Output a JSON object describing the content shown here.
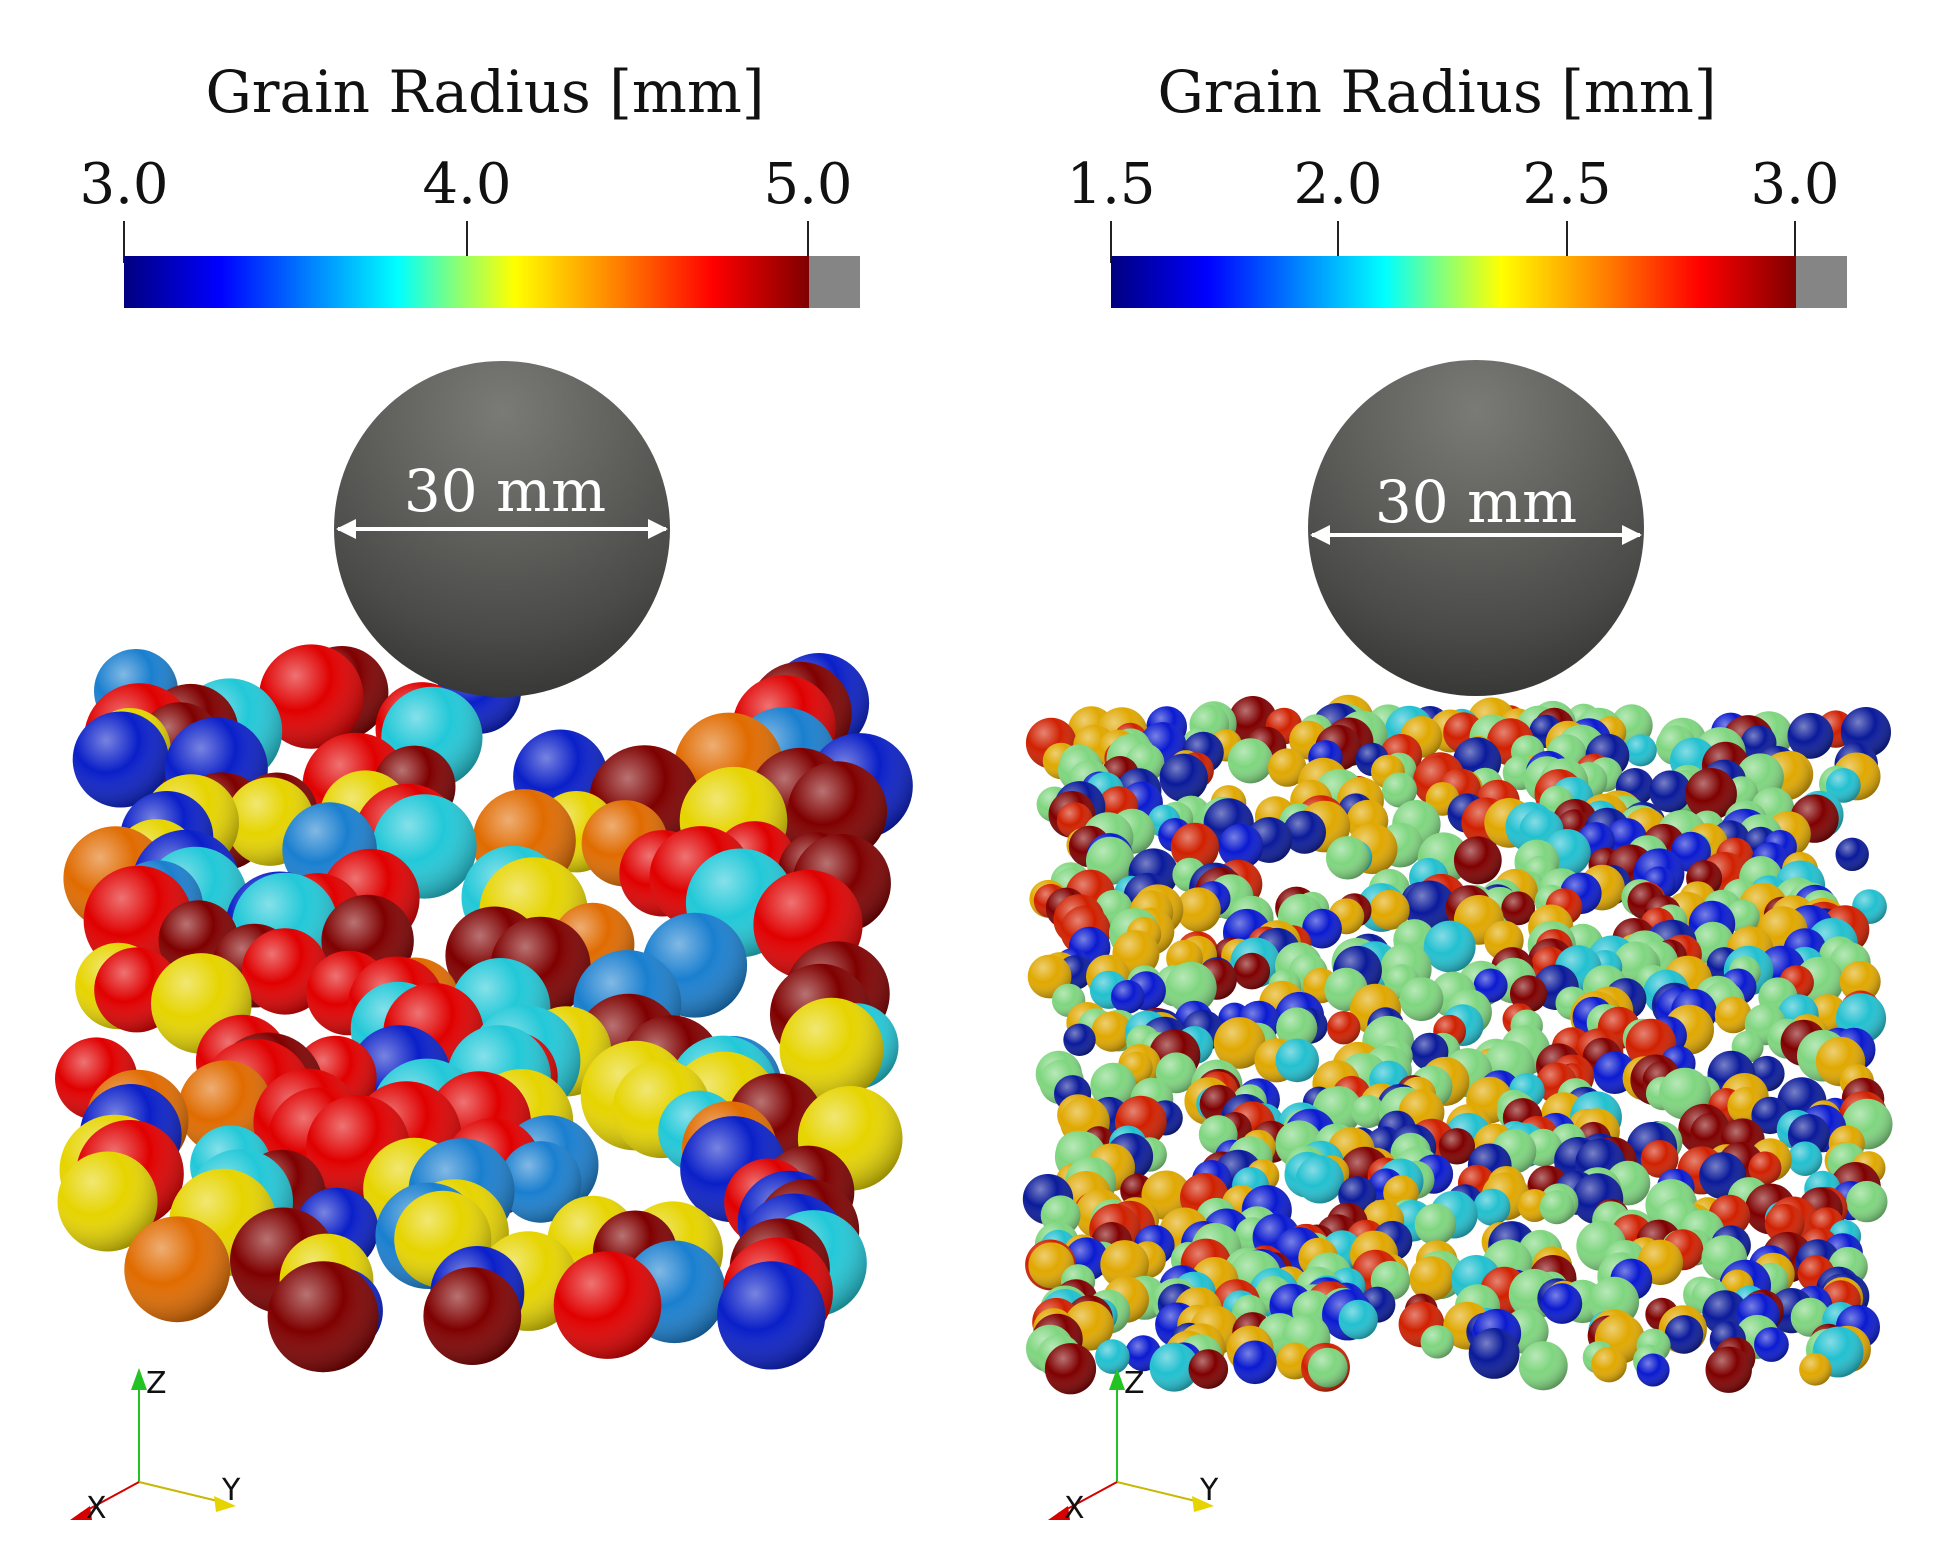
{
  "panels": [
    {
      "colorbar": {
        "title": "Grain Radius [mm]",
        "ticks": [
          "3.0",
          "4.0",
          "5.0"
        ],
        "min": 3.0,
        "max": 5.0
      },
      "impactor_label": "30 mm",
      "axes": {
        "z": "Z",
        "x": "X",
        "y": "Y"
      }
    },
    {
      "colorbar": {
        "title": "Grain Radius [mm]",
        "ticks": [
          "1.5",
          "2.0",
          "2.5",
          "3.0"
        ],
        "min": 1.5,
        "max": 3.0
      },
      "impactor_label": "30 mm",
      "axes": {
        "z": "Z",
        "x": "X",
        "y": "Y"
      }
    }
  ],
  "colors": {
    "colormap": [
      "#00007f",
      "#0000ff",
      "#00ffff",
      "#80ff7f",
      "#ffff00",
      "#ff8000",
      "#ff0000",
      "#7f0000"
    ],
    "out_of_range": "#858585",
    "impactor": "#5a5a58",
    "axis_z": "#22c322",
    "axis_y": "#e6d400",
    "axis_x": "#d60000"
  }
}
